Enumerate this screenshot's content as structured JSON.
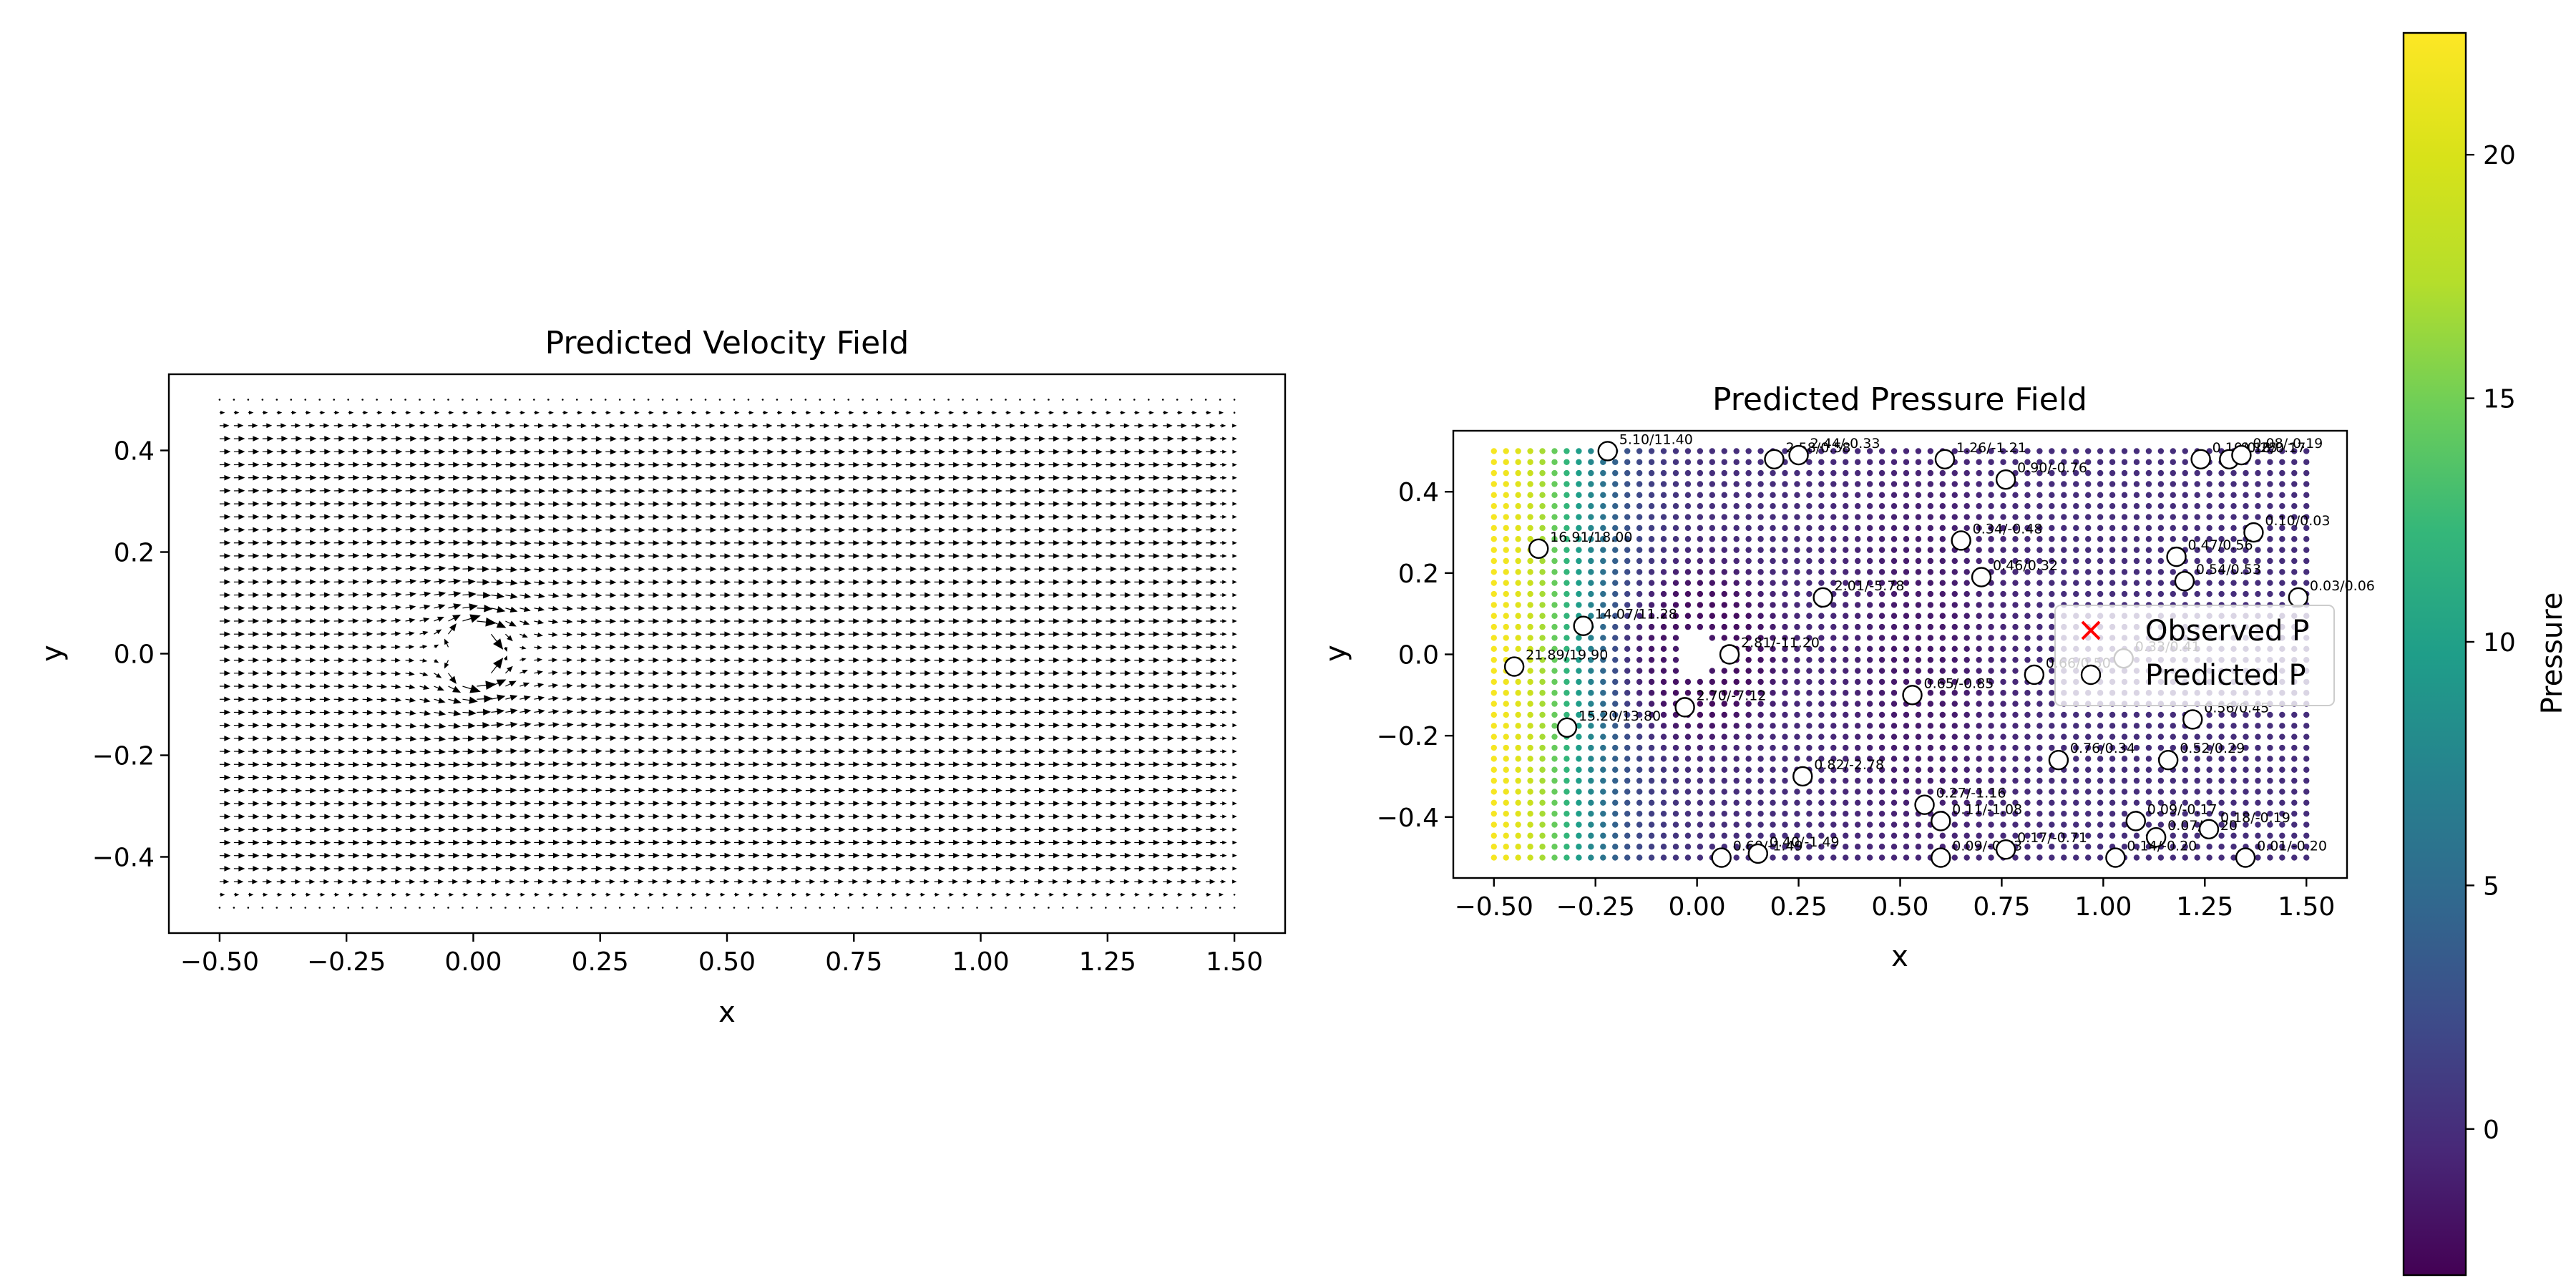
{
  "chart_data": [
    {
      "type": "quiver",
      "title": "Predicted Velocity Field",
      "xlabel": "x",
      "ylabel": "y",
      "xlim": [
        -0.6,
        1.6
      ],
      "ylim": [
        -0.55,
        0.55
      ],
      "xticks": [
        -0.5,
        -0.25,
        0.0,
        0.25,
        0.5,
        0.75,
        1.0,
        1.25,
        1.5
      ],
      "xtick_labels": [
        "−0.50",
        "−0.25",
        "0.00",
        "0.25",
        "0.50",
        "0.75",
        "1.00",
        "1.25",
        "1.50"
      ],
      "yticks": [
        -0.4,
        -0.2,
        0.0,
        0.2,
        0.4
      ],
      "ytick_labels": [
        "−0.4",
        "−0.2",
        "0.0",
        "0.2",
        "0.4"
      ],
      "grid": false,
      "domain": {
        "x": [
          -0.5,
          1.5
        ],
        "y": [
          -0.5,
          0.5
        ]
      },
      "cylinder": {
        "center": [
          0.0,
          0.0
        ],
        "radius": 0.05
      },
      "arrow_color": "#000000"
    },
    {
      "type": "scatter",
      "title": "Predicted Pressure Field",
      "xlabel": "x",
      "ylabel": "y",
      "xlim": [
        -0.6,
        1.6
      ],
      "ylim": [
        -0.55,
        0.55
      ],
      "xticks": [
        -0.5,
        -0.25,
        0.0,
        0.25,
        0.5,
        0.75,
        1.0,
        1.25,
        1.5
      ],
      "xtick_labels": [
        "−0.50",
        "−0.25",
        "0.00",
        "0.25",
        "0.50",
        "0.75",
        "1.00",
        "1.25",
        "1.50"
      ],
      "yticks": [
        -0.4,
        -0.2,
        0.0,
        0.2,
        0.4
      ],
      "ytick_labels": [
        "−0.4",
        "−0.2",
        "0.0",
        "0.2",
        "0.4"
      ],
      "grid": false,
      "colormap": "viridis",
      "colorbar": {
        "label": "Pressure",
        "range": [
          -3.0,
          22.5
        ],
        "ticks": [
          0,
          5,
          10,
          15,
          20
        ],
        "tick_labels": [
          "0",
          "5",
          "10",
          "15",
          "20"
        ]
      },
      "legend": {
        "placement": "center-right",
        "entries": [
          {
            "label": "Observed P",
            "marker": "x",
            "color": "#ff0000"
          },
          {
            "label": "Predicted P",
            "marker": "o",
            "color": "#ffffff"
          }
        ]
      },
      "observations": [
        {
          "x": -0.22,
          "y": 0.5,
          "label": "5.10/11.40"
        },
        {
          "x": 0.19,
          "y": 0.48,
          "label": "2.58/0.58"
        },
        {
          "x": 0.25,
          "y": 0.49,
          "label": "2.44/-0.33"
        },
        {
          "x": 0.61,
          "y": 0.48,
          "label": "1.26/-1.21"
        },
        {
          "x": 0.76,
          "y": 0.43,
          "label": "0.90/-0.76"
        },
        {
          "x": 1.24,
          "y": 0.48,
          "label": "0.10/0.25"
        },
        {
          "x": 1.31,
          "y": 0.48,
          "label": "0.18/0.17"
        },
        {
          "x": 1.34,
          "y": 0.49,
          "label": "0.08/-0.19"
        },
        {
          "x": -0.39,
          "y": 0.26,
          "label": "16.91/18.00"
        },
        {
          "x": 0.65,
          "y": 0.28,
          "label": "0.34/-0.48"
        },
        {
          "x": 1.37,
          "y": 0.3,
          "label": "0.10/0.03"
        },
        {
          "x": 1.18,
          "y": 0.24,
          "label": "0.47/0.56"
        },
        {
          "x": 0.7,
          "y": 0.19,
          "label": "0.46/0.32"
        },
        {
          "x": 1.2,
          "y": 0.18,
          "label": "0.54/0.53"
        },
        {
          "x": 0.31,
          "y": 0.14,
          "label": "2.01/-5.78"
        },
        {
          "x": 1.48,
          "y": 0.14,
          "label": "0.03/0.06"
        },
        {
          "x": -0.28,
          "y": 0.07,
          "label": "14.07/11.28"
        },
        {
          "x": 0.08,
          "y": 0.0,
          "label": "2.81/-11.20"
        },
        {
          "x": -0.45,
          "y": -0.03,
          "label": "21.89/19.90"
        },
        {
          "x": 0.83,
          "y": -0.05,
          "label": "0.66/0.50"
        },
        {
          "x": 1.05,
          "y": -0.01,
          "label": "0.33/0.41"
        },
        {
          "x": 0.53,
          "y": -0.1,
          "label": "0.65/-0.85"
        },
        {
          "x": -0.03,
          "y": -0.13,
          "label": "2.70/-7.12"
        },
        {
          "x": -0.32,
          "y": -0.18,
          "label": "15.20/13.80"
        },
        {
          "x": 1.22,
          "y": -0.16,
          "label": "0.56/0.45"
        },
        {
          "x": 0.89,
          "y": -0.26,
          "label": "0.76/0.34"
        },
        {
          "x": 1.16,
          "y": -0.26,
          "label": "0.52/0.29"
        },
        {
          "x": 0.26,
          "y": -0.3,
          "label": "0.82/-2.78"
        },
        {
          "x": 0.56,
          "y": -0.37,
          "label": "0.27/-1.16"
        },
        {
          "x": 0.6,
          "y": -0.41,
          "label": "0.11/-1.08"
        },
        {
          "x": 1.08,
          "y": -0.41,
          "label": "0.09/-0.17"
        },
        {
          "x": 1.13,
          "y": -0.45,
          "label": "0.07/-0.20"
        },
        {
          "x": 1.26,
          "y": -0.43,
          "label": "0.18/-0.19"
        },
        {
          "x": 0.06,
          "y": -0.5,
          "label": "0.60/-1.49"
        },
        {
          "x": 0.15,
          "y": -0.49,
          "label": "0.40/-1.49"
        },
        {
          "x": 0.6,
          "y": -0.5,
          "label": "0.09/-0.73"
        },
        {
          "x": 0.76,
          "y": -0.48,
          "label": "0.17/-0.71"
        },
        {
          "x": 1.03,
          "y": -0.5,
          "label": "0.14/-0.20"
        },
        {
          "x": 1.35,
          "y": -0.5,
          "label": "0.01/-0.20"
        }
      ]
    }
  ]
}
